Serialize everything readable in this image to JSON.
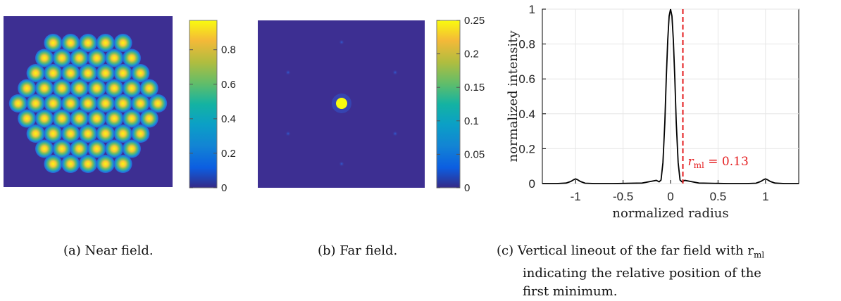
{
  "panel_a": {
    "colorbar": {
      "ticks": [
        "0",
        "0.2",
        "0.4",
        "0.6",
        "0.8"
      ],
      "max": 0.97
    },
    "caption": "(a)  Near field."
  },
  "panel_b": {
    "colorbar": {
      "ticks": [
        "0",
        "0.05",
        "0.1",
        "0.15",
        "0.2",
        "0.25"
      ],
      "max": 0.25
    },
    "caption": "(b)  Far field."
  },
  "panel_c": {
    "caption_lines": [
      "(c)  Vertical lineout of the far field with r",
      "indicating the relative position of the",
      "first minimum."
    ],
    "caption_sub": "ml"
  },
  "colors": {
    "dark": "#3d2f92",
    "line": "#000000",
    "marker": "#e41a1c"
  },
  "chart_data": [
    {
      "type": "line",
      "title": "",
      "xlabel": "normalized radius",
      "ylabel": "normalized intensity",
      "xlim": [
        -1.35,
        1.35
      ],
      "ylim": [
        0,
        1
      ],
      "xticks": [
        "-1",
        "-0.5",
        "0",
        "0.5",
        "1"
      ],
      "yticks": [
        "0",
        "0.2",
        "0.4",
        "0.6",
        "0.8",
        "1"
      ],
      "grid": true,
      "series": [
        {
          "x": [
            -1.35,
            -1.2,
            -1.1,
            -1.05,
            -1.02,
            -1.0,
            -0.98,
            -0.95,
            -0.9,
            -0.8,
            -0.6,
            -0.3,
            -0.2,
            -0.15,
            -0.12,
            -0.1,
            -0.08,
            -0.06,
            -0.045,
            -0.03,
            -0.015,
            0,
            0.015,
            0.03,
            0.045,
            0.06,
            0.08,
            0.1,
            0.12,
            0.15,
            0.2,
            0.3,
            0.6,
            0.8,
            0.9,
            0.95,
            0.98,
            1.0,
            1.02,
            1.05,
            1.1,
            1.2,
            1.35
          ],
          "y": [
            0,
            0,
            0.003,
            0.012,
            0.022,
            0.027,
            0.022,
            0.012,
            0.002,
            0,
            0,
            0.003,
            0.013,
            0.018,
            0.01,
            0.02,
            0.12,
            0.35,
            0.6,
            0.82,
            0.96,
            1.0,
            0.96,
            0.82,
            0.6,
            0.35,
            0.12,
            0.02,
            0.01,
            0.018,
            0.013,
            0.003,
            0,
            0,
            0.002,
            0.012,
            0.022,
            0.027,
            0.022,
            0.012,
            0.003,
            0,
            0
          ]
        }
      ],
      "annotation": {
        "x": 0.13,
        "label_var": "r",
        "label_sub": "ml",
        "label_value": " = 0.13"
      }
    }
  ]
}
